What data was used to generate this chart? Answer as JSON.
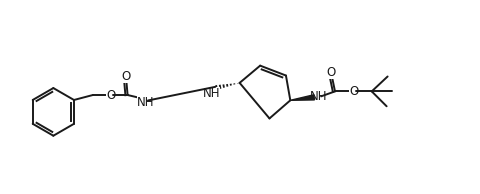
{
  "bg_color": "#ffffff",
  "line_color": "#1a1a1a",
  "line_width": 1.4,
  "font_size": 8.5,
  "fig_w": 4.8,
  "fig_h": 1.94,
  "dpi": 100,
  "xlim": [
    0,
    48
  ],
  "ylim": [
    0,
    19.4
  ]
}
